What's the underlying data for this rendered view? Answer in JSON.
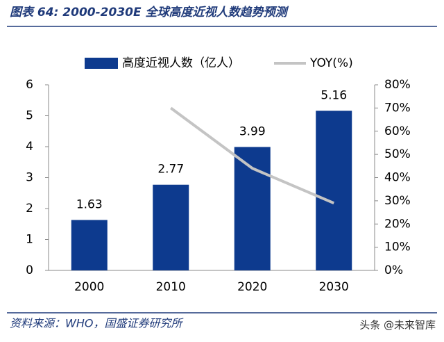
{
  "chart_data": {
    "type": "bar-line",
    "title": "图表 64:  2000-2030E 全球高度近视人数趋势预测",
    "categories": [
      "2000",
      "2010",
      "2020",
      "2030"
    ],
    "series": [
      {
        "name": "高度近视人数（亿人）",
        "type": "bar",
        "color": "#0d3a8e",
        "values": [
          1.63,
          2.77,
          3.99,
          5.16
        ]
      },
      {
        "name": "YOY(%)",
        "type": "line",
        "color": "#c4c4c4",
        "axis": "y2",
        "values": [
          null,
          70,
          44,
          29
        ]
      }
    ],
    "ylim": [
      0,
      6
    ],
    "yticks": [
      0,
      1,
      2,
      3,
      4,
      5,
      6
    ],
    "y2lim": [
      0,
      80
    ],
    "y2ticks": [
      {
        "value": 0,
        "label": "0%"
      },
      {
        "value": 10,
        "label": "10%"
      },
      {
        "value": 20,
        "label": "20%"
      },
      {
        "value": 30,
        "label": "30%"
      },
      {
        "value": 40,
        "label": "40%"
      },
      {
        "value": 50,
        "label": "50%"
      },
      {
        "value": 60,
        "label": "60%"
      },
      {
        "value": 70,
        "label": "70%"
      },
      {
        "value": 80,
        "label": "80%"
      }
    ],
    "grid": false
  },
  "source": "资料来源：WHO，国盛证券研究所",
  "watermark": "头条 @未来智库"
}
